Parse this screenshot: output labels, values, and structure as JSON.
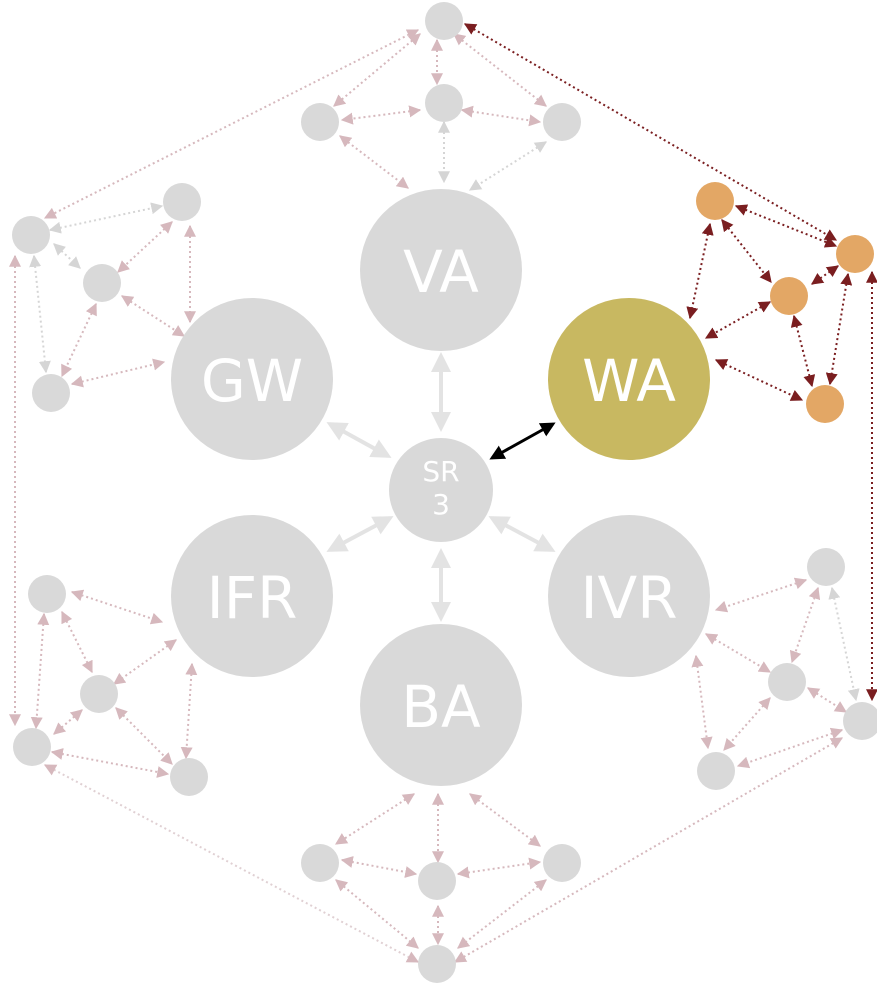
{
  "nodes": {
    "center": {
      "line1": "SR",
      "line2": "3"
    },
    "va": "VA",
    "wa": "WA",
    "ivr": "IVR",
    "ba": "BA",
    "ifr": "IFR",
    "gw": "GW"
  },
  "colors": {
    "grey_node": "#d9d9d9",
    "active_node": "#c8b861",
    "active_small_node": "#e3a765",
    "active_edge": "#7a1e20",
    "faded_edge": "#d6b8bd",
    "faded_grey_edge": "#d5d5d5",
    "center_link_active": "#000000"
  }
}
